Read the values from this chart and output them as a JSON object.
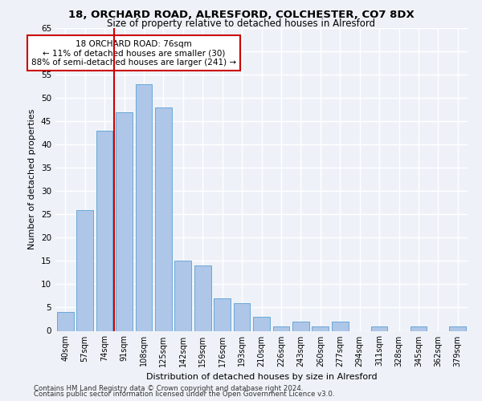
{
  "title1": "18, ORCHARD ROAD, ALRESFORD, COLCHESTER, CO7 8DX",
  "title2": "Size of property relative to detached houses in Alresford",
  "xlabel": "Distribution of detached houses by size in Alresford",
  "ylabel": "Number of detached properties",
  "categories": [
    "40sqm",
    "57sqm",
    "74sqm",
    "91sqm",
    "108sqm",
    "125sqm",
    "142sqm",
    "159sqm",
    "176sqm",
    "193sqm",
    "210sqm",
    "226sqm",
    "243sqm",
    "260sqm",
    "277sqm",
    "294sqm",
    "311sqm",
    "328sqm",
    "345sqm",
    "362sqm",
    "379sqm"
  ],
  "values": [
    4,
    26,
    43,
    47,
    53,
    48,
    15,
    14,
    7,
    6,
    3,
    1,
    2,
    1,
    2,
    0,
    1,
    0,
    1,
    0,
    1
  ],
  "bar_color": "#aec6e8",
  "bar_edge_color": "#5a9fd4",
  "vline_x_index": 2,
  "vline_color": "#cc0000",
  "annotation_text": "18 ORCHARD ROAD: 76sqm\n← 11% of detached houses are smaller (30)\n88% of semi-detached houses are larger (241) →",
  "annotation_box_color": "#ffffff",
  "annotation_box_edge": "#cc0000",
  "ylim": [
    0,
    65
  ],
  "yticks": [
    0,
    5,
    10,
    15,
    20,
    25,
    30,
    35,
    40,
    45,
    50,
    55,
    60,
    65
  ],
  "footer1": "Contains HM Land Registry data © Crown copyright and database right 2024.",
  "footer2": "Contains public sector information licensed under the Open Government Licence v3.0.",
  "bg_color": "#eef2f8",
  "plot_bg_color": "#eef2f8",
  "grid_color": "#ffffff"
}
